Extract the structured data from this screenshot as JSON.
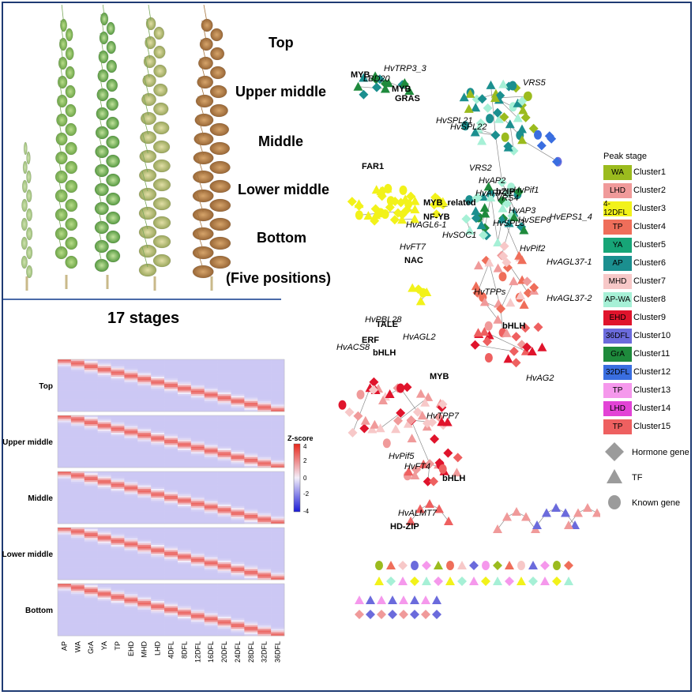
{
  "positions": {
    "top": "Top",
    "upper_middle": "Upper middle",
    "middle": "Middle",
    "lower_middle": "Lower middle",
    "bottom": "Bottom",
    "caption": "(Five positions)"
  },
  "stages_title": "17 stages",
  "heatmap": {
    "rows": [
      "Top",
      "Upper middle",
      "Middle",
      "Lower middle",
      "Bottom"
    ],
    "stages": [
      "AP",
      "WA",
      "GrA",
      "YA",
      "TP",
      "EHD",
      "MHD",
      "LHD",
      "4DFL",
      "8DFL",
      "12DFL",
      "16DFL",
      "20DFL",
      "24DFL",
      "28DFL",
      "32DFL",
      "36DFL"
    ],
    "colorbar_title": "Z-score",
    "colorbar_ticks": [
      "4",
      "2",
      "0",
      "-2",
      "-4"
    ],
    "colors": {
      "high": "#e8271b",
      "mid": "#f3eefa",
      "low": "#1a1ad6"
    }
  },
  "legend": {
    "title": "Peak stage",
    "clusters": [
      {
        "stage": "WA",
        "name": "Cluster1",
        "color": "#9bbb1e"
      },
      {
        "stage": "LHD",
        "name": "Cluster2",
        "color": "#f09a9a"
      },
      {
        "stage": "4-12DFL",
        "name": "Cluster3",
        "color": "#f2f21a"
      },
      {
        "stage": "TP",
        "name": "Cluster4",
        "color": "#ef6e5a"
      },
      {
        "stage": "YA",
        "name": "Cluster5",
        "color": "#17a577"
      },
      {
        "stage": "AP",
        "name": "Cluster6",
        "color": "#1b8f8f"
      },
      {
        "stage": "MHD",
        "name": "Cluster7",
        "color": "#f7c8c8"
      },
      {
        "stage": "AP-WA",
        "name": "Cluster8",
        "color": "#a6f0d6"
      },
      {
        "stage": "EHD",
        "name": "Cluster9",
        "color": "#e0142c"
      },
      {
        "stage": "36DFL",
        "name": "Cluster10",
        "color": "#6b6bdc"
      },
      {
        "stage": "GrA",
        "name": "Cluster11",
        "color": "#1e8a3c"
      },
      {
        "stage": "32DFL",
        "name": "Cluster12",
        "color": "#3a6ee0"
      },
      {
        "stage": "TP",
        "name": "Cluster13",
        "color": "#f598ec"
      },
      {
        "stage": "LHD",
        "name": "Cluster14",
        "color": "#e243d6"
      },
      {
        "stage": "TP",
        "name": "Cluster15",
        "color": "#ee6060"
      }
    ],
    "shapes": [
      {
        "shape": "diamond",
        "label": "Hormone gene"
      },
      {
        "shape": "triangle",
        "label": "TF"
      },
      {
        "shape": "circle",
        "label": "Known gene"
      }
    ]
  },
  "network_labels": {
    "italic": [
      "HvTRP3_3",
      "LBD20",
      "VRS5",
      "HvSPL21",
      "HvSPL22",
      "VRS2",
      "HvAP2",
      "HvARF12",
      "HvPif1",
      "VRS4",
      "HvAP3",
      "HvSEP6",
      "HvEPS1_4",
      "HvAGL6-1",
      "HvSOC1",
      "HvSPL3",
      "HvFT7",
      "HvPif2",
      "HvAGL37-1",
      "HvTPPs",
      "HvAGL37-2",
      "HvPBL28",
      "HvAGL2",
      "HvACS8",
      "HvAG2",
      "HvTPP7",
      "HvPif5",
      "HvFT4",
      "HvALMT7"
    ],
    "bold": [
      "MYB",
      "MYB",
      "GRAS",
      "FAR1",
      "MYB_related",
      "NF-YB",
      "bZIP",
      "NAC",
      "TALE",
      "ERF",
      "bHLH",
      "bHLH",
      "MYB",
      "bHLH",
      "HD-ZIP"
    ]
  }
}
